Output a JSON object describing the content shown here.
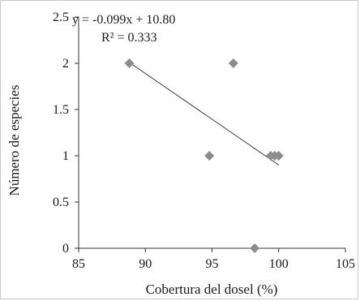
{
  "chart_data": {
    "type": "scatter",
    "xlabel": "Cobertura del dosel (%)",
    "ylabel": "Número  de especies",
    "xlim": [
      85,
      105
    ],
    "ylim": [
      0,
      2.5
    ],
    "x_ticks": [
      85,
      90,
      95,
      100,
      105
    ],
    "y_ticks": [
      0,
      0.5,
      1,
      1.5,
      2,
      2.5
    ],
    "x_tick_labels": [
      "85",
      "90",
      "95",
      "100",
      "105"
    ],
    "y_tick_labels": [
      "0",
      "0.5",
      "1",
      "1.5",
      "2",
      "2.5"
    ],
    "grid": false,
    "marker": "diamond",
    "marker_color": "#8c8c8c",
    "points": [
      {
        "x": 88.8,
        "y": 2
      },
      {
        "x": 96.6,
        "y": 2
      },
      {
        "x": 94.8,
        "y": 1
      },
      {
        "x": 99.4,
        "y": 1
      },
      {
        "x": 99.7,
        "y": 1
      },
      {
        "x": 100.0,
        "y": 1
      },
      {
        "x": 98.2,
        "y": 0
      }
    ],
    "trendline": {
      "slope": -0.099,
      "intercept": 10.8,
      "x_range": [
        88.8,
        100.0
      ],
      "equation": "y = -0.099x + 10.80",
      "r2": "R² = 0.333"
    }
  }
}
